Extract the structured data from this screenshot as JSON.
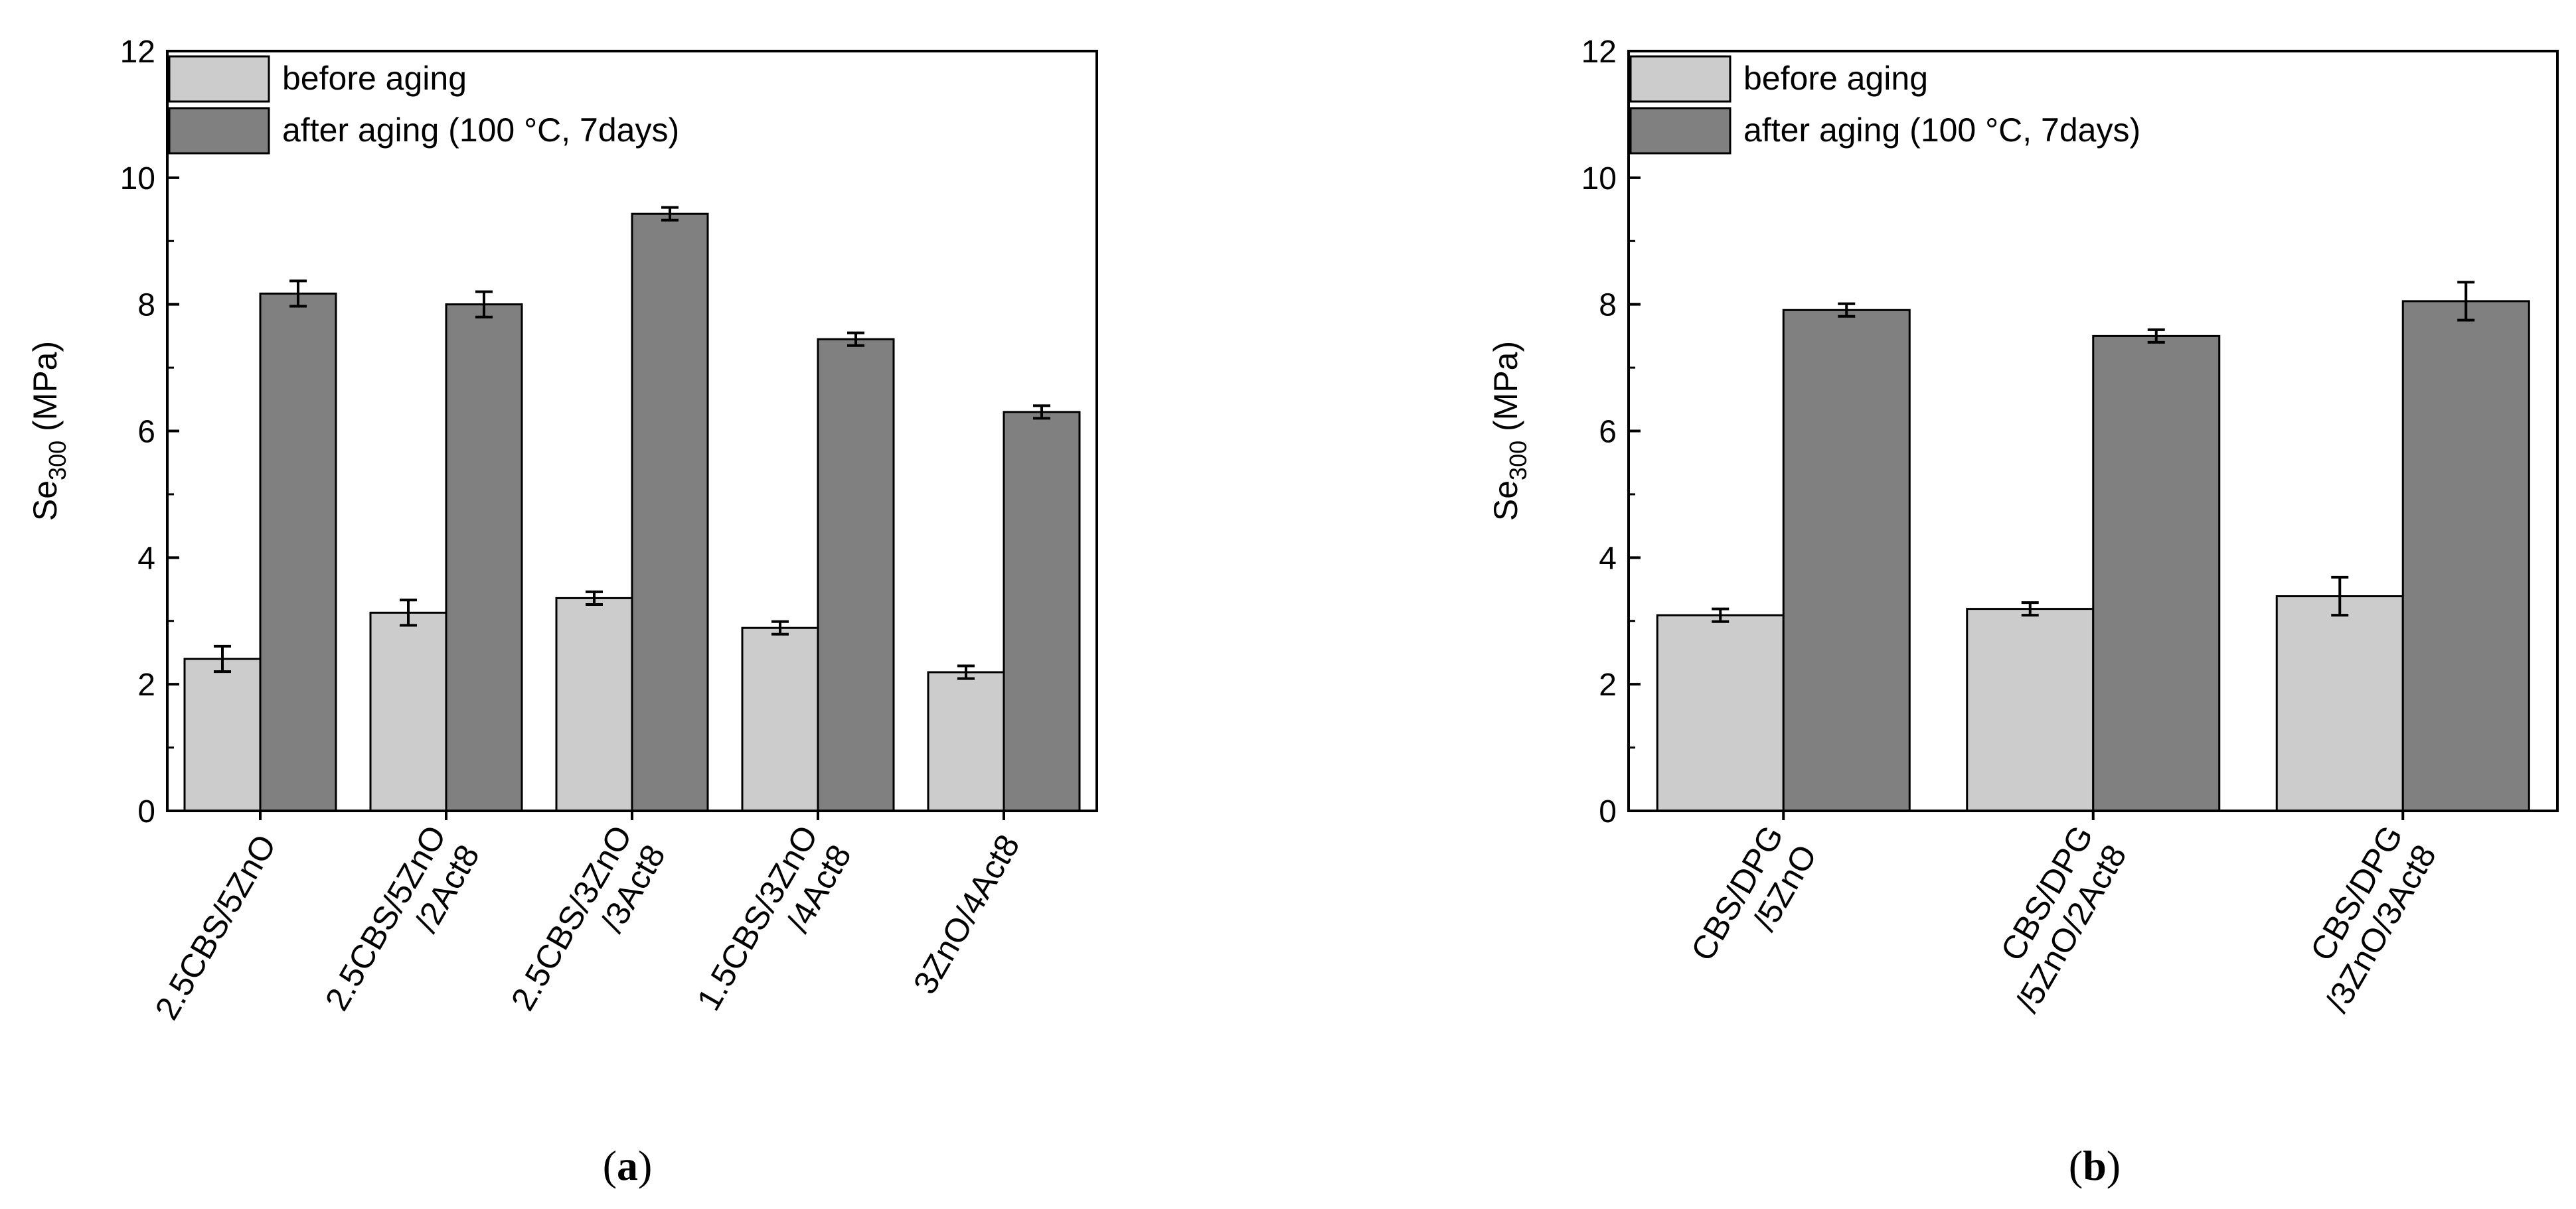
{
  "chart_data": [
    {
      "panel_caption": "(a)",
      "caption_open": "(",
      "caption_letter": "a",
      "caption_close": ")",
      "type": "bar",
      "ylabel_main": "Se",
      "ylabel_sub": "300",
      "ylabel_unit": " (MPa)",
      "ylim": [
        0,
        12
      ],
      "yticks": [
        0,
        2,
        4,
        6,
        8,
        10,
        12
      ],
      "legend_position": "top-left",
      "categories": [
        [
          "2.5CBS/5ZnO"
        ],
        [
          "2.5CBS/5ZnO",
          "/2Act8"
        ],
        [
          "2.5CBS/3ZnO",
          "/3Act8"
        ],
        [
          "1.5CBS/3ZnO",
          "/4Act8"
        ],
        [
          "3ZnO/4Act8"
        ]
      ],
      "series": [
        {
          "name": "before aging",
          "color": "#cccccc",
          "values": [
            2.4,
            3.13,
            3.36,
            2.89,
            2.19
          ],
          "errors": [
            0.2,
            0.2,
            0.1,
            0.1,
            0.1
          ]
        },
        {
          "name": "after aging (100 °C, 7days)",
          "color": "#808080",
          "values": [
            8.17,
            8.0,
            9.43,
            7.45,
            6.3
          ],
          "errors": [
            0.2,
            0.2,
            0.1,
            0.1,
            0.1
          ]
        }
      ]
    },
    {
      "panel_caption": "(b)",
      "caption_open": "(",
      "caption_letter": "b",
      "caption_close": ")",
      "type": "bar",
      "ylabel_main": "Se",
      "ylabel_sub": "300",
      "ylabel_unit": " (MPa)",
      "ylim": [
        0,
        12
      ],
      "yticks": [
        0,
        2,
        4,
        6,
        8,
        10,
        12
      ],
      "legend_position": "top-left",
      "categories": [
        [
          "CBS/DPG",
          "/5ZnO"
        ],
        [
          "CBS/DPG",
          "/5ZnO/2Act8"
        ],
        [
          "CBS/DPG",
          "/3ZnO/3Act8"
        ]
      ],
      "series": [
        {
          "name": "before aging",
          "color": "#cccccc",
          "values": [
            3.09,
            3.19,
            3.39
          ],
          "errors": [
            0.1,
            0.1,
            0.3
          ]
        },
        {
          "name": "after aging (100 °C, 7days)",
          "color": "#808080",
          "values": [
            7.91,
            7.5,
            8.05
          ],
          "errors": [
            0.1,
            0.1,
            0.3
          ]
        }
      ]
    }
  ]
}
